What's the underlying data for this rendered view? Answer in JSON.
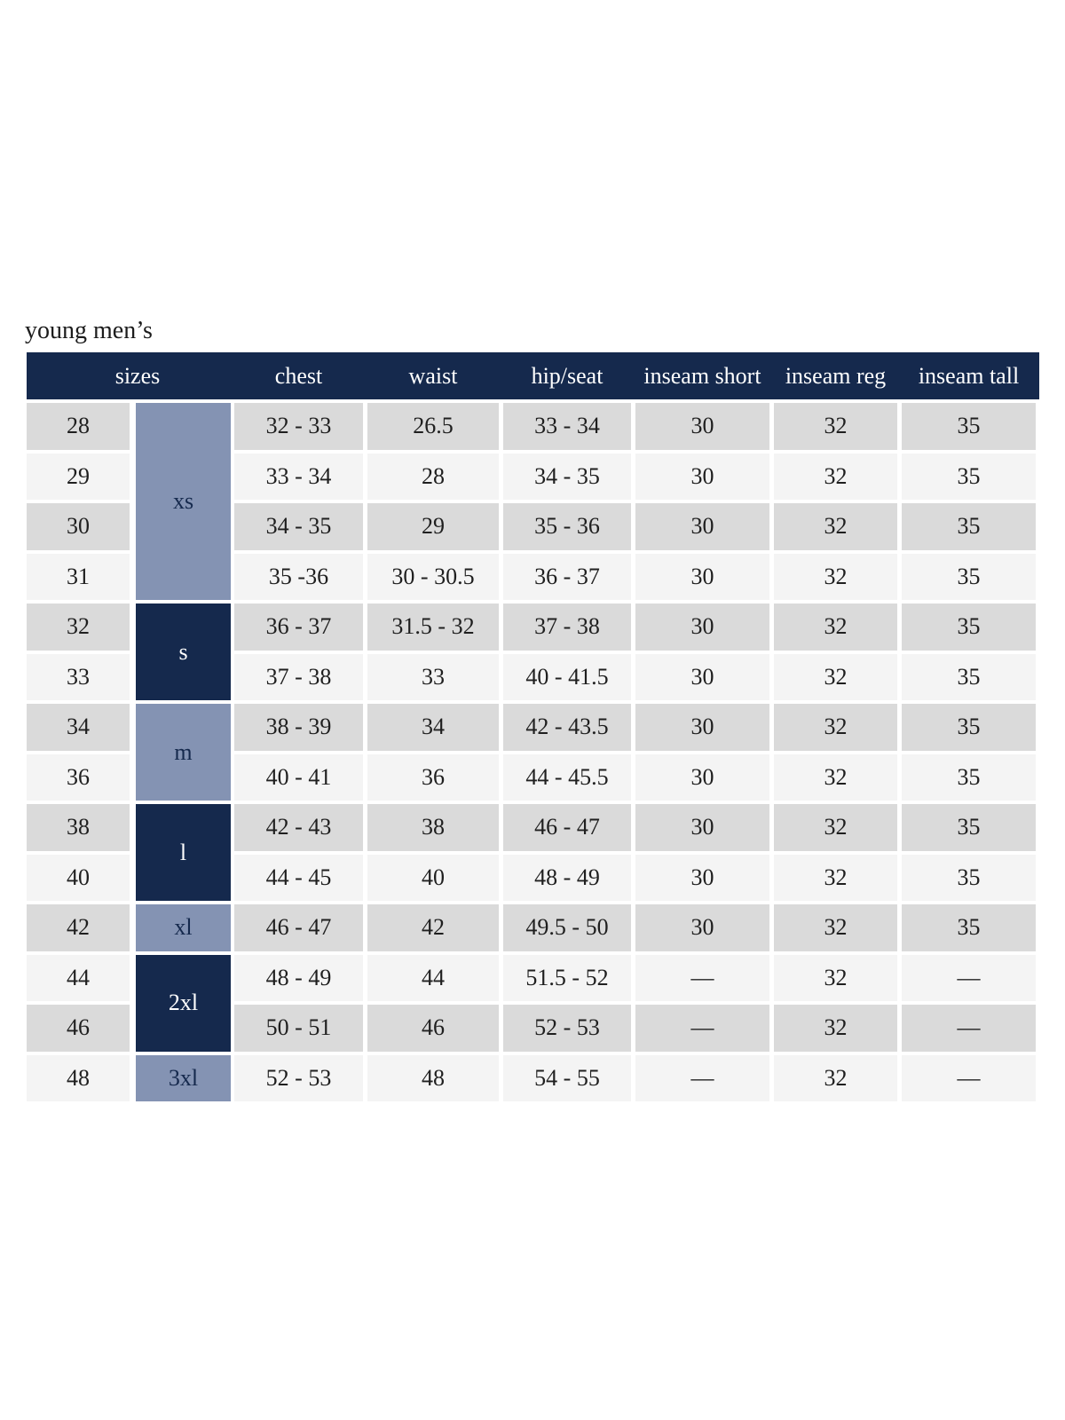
{
  "title": "young men’s",
  "colors": {
    "header_bg": "#15294d",
    "group_dark_bg": "#15294d",
    "group_light_bg": "#8493b3",
    "row_odd_bg": "#dadada",
    "row_even_bg": "#f4f4f4",
    "header_text": "#ffffff",
    "body_text": "#1f1f1f"
  },
  "table": {
    "headers": [
      "sizes",
      "chest",
      "waist",
      "hip/seat",
      "inseam short",
      "inseam reg",
      "inseam tall"
    ],
    "groups": [
      {
        "label": "xs",
        "rows": 4,
        "style": "light"
      },
      {
        "label": "s",
        "rows": 2,
        "style": "dark"
      },
      {
        "label": "m",
        "rows": 2,
        "style": "light"
      },
      {
        "label": "l",
        "rows": 2,
        "style": "dark"
      },
      {
        "label": "xl",
        "rows": 1,
        "style": "light"
      },
      {
        "label": "2xl",
        "rows": 2,
        "style": "dark"
      },
      {
        "label": "3xl",
        "rows": 1,
        "style": "light"
      }
    ],
    "rows": [
      {
        "size": "28",
        "chest": "32 - 33",
        "waist": "26.5",
        "hip_seat": "33 - 34",
        "inseam_short": "30",
        "inseam_reg": "32",
        "inseam_tall": "35"
      },
      {
        "size": "29",
        "chest": "33 - 34",
        "waist": "28",
        "hip_seat": "34 - 35",
        "inseam_short": "30",
        "inseam_reg": "32",
        "inseam_tall": "35"
      },
      {
        "size": "30",
        "chest": "34 - 35",
        "waist": "29",
        "hip_seat": "35 - 36",
        "inseam_short": "30",
        "inseam_reg": "32",
        "inseam_tall": "35"
      },
      {
        "size": "31",
        "chest": "35 -36",
        "waist": "30 - 30.5",
        "hip_seat": "36 - 37",
        "inseam_short": "30",
        "inseam_reg": "32",
        "inseam_tall": "35"
      },
      {
        "size": "32",
        "chest": "36 - 37",
        "waist": "31.5 - 32",
        "hip_seat": "37 - 38",
        "inseam_short": "30",
        "inseam_reg": "32",
        "inseam_tall": "35"
      },
      {
        "size": "33",
        "chest": "37 - 38",
        "waist": "33",
        "hip_seat": "40 - 41.5",
        "inseam_short": "30",
        "inseam_reg": "32",
        "inseam_tall": "35"
      },
      {
        "size": "34",
        "chest": "38 - 39",
        "waist": "34",
        "hip_seat": "42 - 43.5",
        "inseam_short": "30",
        "inseam_reg": "32",
        "inseam_tall": "35"
      },
      {
        "size": "36",
        "chest": "40 - 41",
        "waist": "36",
        "hip_seat": "44 - 45.5",
        "inseam_short": "30",
        "inseam_reg": "32",
        "inseam_tall": "35"
      },
      {
        "size": "38",
        "chest": "42 - 43",
        "waist": "38",
        "hip_seat": "46 - 47",
        "inseam_short": "30",
        "inseam_reg": "32",
        "inseam_tall": "35"
      },
      {
        "size": "40",
        "chest": "44 - 45",
        "waist": "40",
        "hip_seat": "48 - 49",
        "inseam_short": "30",
        "inseam_reg": "32",
        "inseam_tall": "35"
      },
      {
        "size": "42",
        "chest": "46 - 47",
        "waist": "42",
        "hip_seat": "49.5 - 50",
        "inseam_short": "30",
        "inseam_reg": "32",
        "inseam_tall": "35"
      },
      {
        "size": "44",
        "chest": "48 - 49",
        "waist": "44",
        "hip_seat": "51.5 - 52",
        "inseam_short": "—",
        "inseam_reg": "32",
        "inseam_tall": "—"
      },
      {
        "size": "46",
        "chest": "50 - 51",
        "waist": "46",
        "hip_seat": "52 - 53",
        "inseam_short": "—",
        "inseam_reg": "32",
        "inseam_tall": "—"
      },
      {
        "size": "48",
        "chest": "52 - 53",
        "waist": "48",
        "hip_seat": "54 - 55",
        "inseam_short": "—",
        "inseam_reg": "32",
        "inseam_tall": "—"
      }
    ]
  }
}
